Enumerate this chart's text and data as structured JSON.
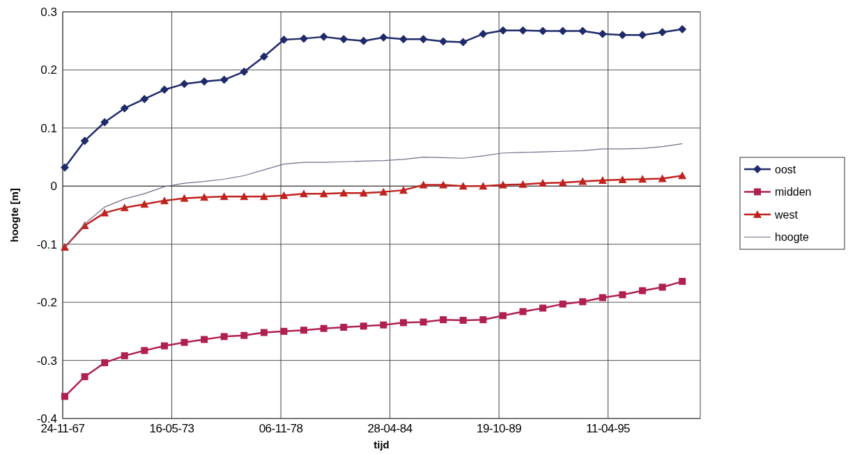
{
  "chart_data": {
    "type": "line",
    "xlabel": "tijd",
    "ylabel": "hoogte [m]",
    "x": [
      "1968",
      "1969",
      "1970",
      "1971",
      "1972",
      "1973",
      "1974",
      "1975",
      "1976",
      "1977",
      "1978",
      "1979",
      "1980",
      "1981",
      "1982",
      "1983",
      "1984",
      "1985",
      "1986",
      "1987",
      "1988",
      "1989",
      "1990",
      "1991",
      "1992",
      "1993",
      "1994",
      "1995",
      "1996",
      "1997",
      "1998",
      "1999"
    ],
    "xlim": [
      "1967-11-24",
      "1999-11-27"
    ],
    "xticks": [
      {
        "value": "1967-11-24",
        "label": "24-11-67"
      },
      {
        "value": "1973-05-16",
        "label": "16-05-73"
      },
      {
        "value": "1978-11-06",
        "label": "06-11-78"
      },
      {
        "value": "1984-04-28",
        "label": "28-04-84"
      },
      {
        "value": "1989-10-19",
        "label": "19-10-89"
      },
      {
        "value": "1995-04-11",
        "label": "11-04-95"
      }
    ],
    "ylim": [
      -0.4,
      0.3
    ],
    "yticks": [
      -0.4,
      -0.3,
      -0.2,
      -0.1,
      0,
      0.1,
      0.2,
      0.3
    ],
    "grid": true,
    "legend": "right",
    "series": [
      {
        "name": "oost",
        "color": "#1f2a6b",
        "marker": "diamond",
        "values": [
          0.032,
          0.078,
          0.11,
          0.134,
          0.15,
          0.166,
          0.176,
          0.18,
          0.183,
          0.197,
          0.223,
          0.252,
          0.254,
          0.257,
          0.253,
          0.25,
          0.256,
          0.253,
          0.253,
          0.249,
          0.248,
          0.262,
          0.268,
          0.268,
          0.267,
          0.267,
          0.267,
          0.262,
          0.26,
          0.26,
          0.265,
          0.27
        ]
      },
      {
        "name": "midden",
        "color": "#b0204f",
        "marker": "square",
        "values": [
          -0.362,
          -0.328,
          -0.304,
          -0.292,
          -0.283,
          -0.275,
          -0.269,
          -0.264,
          -0.259,
          -0.257,
          -0.252,
          -0.25,
          -0.248,
          -0.245,
          -0.243,
          -0.241,
          -0.239,
          -0.235,
          -0.234,
          -0.23,
          -0.231,
          -0.23,
          -0.223,
          -0.216,
          -0.21,
          -0.203,
          -0.199,
          -0.192,
          -0.187,
          -0.18,
          -0.174,
          -0.164
        ]
      },
      {
        "name": "west",
        "color": "#c0221e",
        "marker": "triangle",
        "values": [
          -0.105,
          -0.068,
          -0.046,
          -0.037,
          -0.031,
          -0.025,
          -0.021,
          -0.019,
          -0.018,
          -0.018,
          -0.018,
          -0.016,
          -0.013,
          -0.013,
          -0.012,
          -0.012,
          -0.01,
          -0.007,
          0.002,
          0.002,
          0.0,
          0.0,
          0.002,
          0.003,
          0.005,
          0.006,
          0.008,
          0.01,
          0.011,
          0.012,
          0.013,
          0.018
        ]
      },
      {
        "name": "hoogte",
        "color": "#7a6a8a",
        "marker": "none",
        "values": [
          -0.105,
          -0.065,
          -0.036,
          -0.022,
          -0.013,
          -0.001,
          0.005,
          0.008,
          0.012,
          0.018,
          0.028,
          0.038,
          0.041,
          0.041,
          0.042,
          0.043,
          0.044,
          0.046,
          0.05,
          0.049,
          0.048,
          0.052,
          0.057,
          0.058,
          0.059,
          0.06,
          0.061,
          0.064,
          0.064,
          0.065,
          0.068,
          0.073
        ]
      }
    ]
  }
}
